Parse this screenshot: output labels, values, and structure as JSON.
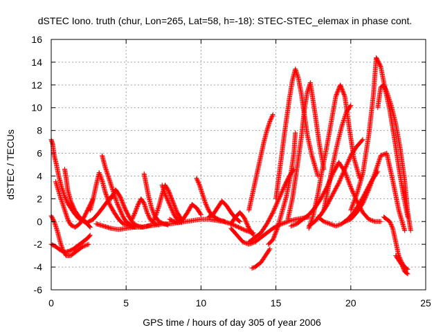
{
  "chart_data": {
    "type": "scatter",
    "title": "dSTEC Iono. truth (chur, Lon=265, Lat=58, h=-18): STEC-STEC_elemax in phase cont.",
    "xlabel": "GPS time / hours of day 305 of year 2006",
    "ylabel": "dSTEC  / TECUs",
    "xlim": [
      0,
      25
    ],
    "ylim": [
      -6,
      16
    ],
    "xticks": [
      0,
      5,
      10,
      15,
      20,
      25
    ],
    "yticks": [
      -6,
      -4,
      -2,
      0,
      2,
      4,
      6,
      8,
      10,
      12,
      14,
      16
    ],
    "grid": true,
    "marker": "+",
    "color": "#ff0000",
    "series": [
      {
        "x": [
          0.0,
          0.1,
          0.2,
          0.35,
          0.5,
          0.7,
          0.9,
          1.1,
          1.3,
          1.5,
          1.8,
          2.1,
          2.4,
          2.6
        ],
        "y": [
          7.2,
          6.8,
          5.8,
          5.0,
          4.0,
          3.0,
          2.2,
          1.6,
          1.2,
          0.8,
          0.3,
          0.1,
          -0.2,
          -0.5
        ]
      },
      {
        "x": [
          0.0,
          0.2,
          0.4,
          0.6,
          0.8,
          1.0,
          1.3,
          1.7,
          2.1,
          2.5
        ],
        "y": [
          0.5,
          0.0,
          -0.8,
          -1.8,
          -2.6,
          -3.0,
          -3.0,
          -2.6,
          -2.2,
          -2.0
        ]
      },
      {
        "x": [
          0.0,
          0.3,
          0.6,
          0.9,
          1.2,
          1.5,
          1.8,
          2.1,
          2.4,
          2.6
        ],
        "y": [
          -2.0,
          -2.2,
          -2.5,
          -2.7,
          -2.6,
          -2.4,
          -2.1,
          -1.8,
          -1.5,
          -1.2
        ]
      },
      {
        "x": [
          0.3,
          0.6,
          0.9,
          1.1,
          1.3,
          1.6,
          1.9,
          2.2,
          2.5,
          2.8
        ],
        "y": [
          3.5,
          2.2,
          1.0,
          0.2,
          -0.3,
          -0.5,
          -0.2,
          0.4,
          1.2,
          2.0
        ]
      },
      {
        "x": [
          0.9,
          1.0,
          1.1,
          1.3,
          1.6,
          2.0,
          2.4,
          2.8,
          3.2,
          3.6,
          4.0
        ],
        "y": [
          4.6,
          3.8,
          2.8,
          1.8,
          0.9,
          0.2,
          -0.1,
          0.2,
          0.8,
          1.5,
          2.2
        ]
      },
      {
        "x": [
          2.6,
          2.8,
          3.0,
          3.2,
          3.4,
          3.6,
          3.9,
          4.2,
          4.5,
          4.8,
          5.2,
          5.6
        ],
        "y": [
          1.0,
          2.0,
          3.2,
          4.3,
          3.6,
          2.6,
          1.5,
          0.8,
          0.2,
          -0.2,
          -0.4,
          -0.5
        ]
      },
      {
        "x": [
          3.4,
          3.6,
          3.8,
          4.0,
          4.2,
          4.4,
          4.6,
          4.8,
          5.0,
          5.3
        ],
        "y": [
          5.8,
          4.8,
          4.0,
          3.2,
          2.4,
          1.6,
          1.0,
          0.4,
          0.0,
          -0.3
        ]
      },
      {
        "x": [
          4.0,
          4.3,
          4.6,
          4.9,
          5.2,
          5.5,
          5.8,
          6.1,
          6.4,
          6.7
        ],
        "y": [
          2.0,
          2.8,
          2.2,
          1.2,
          0.4,
          -0.2,
          -0.4,
          -0.5,
          -0.4,
          -0.3
        ]
      },
      {
        "x": [
          3.0,
          3.5,
          4.0,
          4.5,
          5.0,
          5.5,
          6.0,
          6.5,
          7.0,
          7.5,
          8.0,
          8.5,
          9.0,
          9.5,
          10.0,
          10.5,
          11.0,
          11.5,
          12.0,
          12.5,
          13.0,
          13.5
        ],
        "y": [
          -0.2,
          -0.4,
          -0.6,
          -0.7,
          -0.6,
          -0.5,
          -0.5,
          -0.4,
          -0.3,
          -0.2,
          -0.2,
          -0.1,
          0.0,
          0.1,
          0.2,
          0.2,
          0.1,
          0.0,
          -0.2,
          -0.5,
          -0.8,
          -1.0
        ]
      },
      {
        "x": [
          5.4,
          5.6,
          5.8,
          6.0,
          6.2,
          6.4,
          6.6,
          6.9,
          7.2
        ],
        "y": [
          0.2,
          0.8,
          1.5,
          2.0,
          1.6,
          0.8,
          0.2,
          -0.2,
          -0.3
        ]
      },
      {
        "x": [
          6.2,
          6.35,
          6.5,
          6.7,
          6.9,
          7.2,
          7.5,
          7.8
        ],
        "y": [
          4.2,
          3.2,
          2.2,
          1.2,
          0.5,
          0.0,
          -0.2,
          -0.3
        ]
      },
      {
        "x": [
          6.8,
          7.0,
          7.2,
          7.4,
          7.6,
          7.8,
          8.1,
          8.4,
          8.7
        ],
        "y": [
          0.0,
          0.6,
          1.4,
          2.4,
          3.2,
          2.8,
          1.8,
          0.8,
          0.2
        ]
      },
      {
        "x": [
          7.4,
          7.6,
          7.8,
          8.0,
          8.2,
          8.4,
          8.7
        ],
        "y": [
          3.2,
          2.4,
          1.8,
          1.2,
          0.6,
          0.2,
          -0.1
        ]
      },
      {
        "x": [
          7.9,
          8.2,
          8.5,
          8.8,
          9.1,
          9.4,
          9.7,
          10.0
        ],
        "y": [
          0.2,
          0.0,
          -0.1,
          0.2,
          0.8,
          1.5,
          1.2,
          0.6
        ]
      },
      {
        "x": [
          9.7,
          9.9,
          10.1,
          10.3,
          10.5,
          10.7,
          11.0,
          11.3,
          11.6
        ],
        "y": [
          3.8,
          3.2,
          2.4,
          1.6,
          1.0,
          0.6,
          0.3,
          0.1,
          0.0
        ]
      },
      {
        "x": [
          10.5,
          10.8,
          11.1,
          11.4,
          11.7,
          12.0,
          12.3,
          12.6
        ],
        "y": [
          0.4,
          0.6,
          1.2,
          1.8,
          1.4,
          0.8,
          0.3,
          0.0
        ]
      },
      {
        "x": [
          12.0,
          12.3,
          12.6,
          12.9,
          13.2,
          13.5
        ],
        "y": [
          -0.2,
          0.4,
          0.8,
          0.3,
          -0.6,
          -1.2
        ]
      },
      {
        "x": [
          12.0,
          12.4,
          12.8,
          13.2,
          13.6,
          14.0,
          14.4,
          14.8,
          15.2,
          15.6,
          16.0,
          16.4,
          16.8,
          17.2
        ],
        "y": [
          -0.6,
          -1.2,
          -1.8,
          -2.0,
          -1.8,
          -1.4,
          -1.0,
          -0.6,
          -0.3,
          -0.1,
          0.1,
          0.2,
          0.3,
          0.4
        ]
      },
      {
        "x": [
          13.2,
          13.4,
          13.6,
          13.8,
          14.0,
          14.2,
          14.4,
          14.6,
          14.8
        ],
        "y": [
          1.0,
          2.2,
          3.4,
          4.6,
          5.8,
          7.0,
          8.0,
          8.8,
          9.4
        ]
      },
      {
        "x": [
          13.4,
          13.6,
          13.8,
          14.0,
          14.2,
          14.4,
          14.6
        ],
        "y": [
          -4.1,
          -4.0,
          -3.8,
          -3.6,
          -3.2,
          -2.8,
          -2.4
        ]
      },
      {
        "x": [
          13.2,
          13.6,
          14.0,
          14.4,
          14.8,
          15.2,
          15.6,
          15.9,
          16.2
        ],
        "y": [
          -1.8,
          -1.4,
          -1.0,
          -0.2,
          0.8,
          2.0,
          3.2,
          4.0,
          4.6
        ]
      },
      {
        "x": [
          14.5,
          14.8,
          15.1,
          15.4,
          15.7,
          16.0,
          16.2,
          16.3
        ],
        "y": [
          -2.0,
          -1.6,
          -0.6,
          0.8,
          2.2,
          4.2,
          6.0,
          7.8
        ]
      },
      {
        "x": [
          15.0,
          15.3,
          15.6,
          15.9,
          16.1,
          16.3,
          16.5,
          16.7,
          16.9,
          17.1,
          17.4,
          17.8
        ],
        "y": [
          2.0,
          5.0,
          8.0,
          10.8,
          12.4,
          13.4,
          12.6,
          11.2,
          9.4,
          7.6,
          5.8,
          4.0
        ]
      },
      {
        "x": [
          15.8,
          16.1,
          16.4,
          16.7,
          16.9,
          17.1,
          17.3,
          17.6,
          17.9,
          18.2
        ],
        "y": [
          0.2,
          2.0,
          4.6,
          7.4,
          9.8,
          11.4,
          12.2,
          9.6,
          6.8,
          4.6
        ]
      },
      {
        "x": [
          16.0,
          16.4,
          16.8,
          17.2,
          17.6,
          18.0,
          18.4,
          18.8,
          19.2,
          19.6,
          20.0,
          20.4,
          20.8,
          21.2,
          21.6,
          22.0
        ],
        "y": [
          -0.4,
          -0.2,
          0.2,
          0.6,
          1.2,
          2.0,
          3.0,
          4.2,
          5.2,
          4.4,
          3.0,
          1.8,
          0.8,
          0.2,
          0.0,
          0.0
        ]
      },
      {
        "x": [
          17.2,
          17.5,
          17.8,
          18.1,
          18.4,
          18.7,
          19.0,
          19.3,
          19.6,
          19.9,
          20.2,
          20.6
        ],
        "y": [
          -0.6,
          0.6,
          2.4,
          4.6,
          6.6,
          8.8,
          11.0,
          12.0,
          11.0,
          8.2,
          5.6,
          3.8
        ]
      },
      {
        "x": [
          18.2,
          18.5,
          18.8,
          19.1,
          19.4,
          19.7,
          20.0
        ],
        "y": [
          1.0,
          3.0,
          5.0,
          6.8,
          8.4,
          9.6,
          10.2
        ]
      },
      {
        "x": [
          17.2,
          17.6,
          18.0,
          18.4,
          18.8,
          19.2,
          19.6,
          20.0,
          20.4,
          20.8
        ],
        "y": [
          -0.4,
          0.0,
          0.6,
          1.4,
          2.4,
          3.4,
          4.6,
          5.8,
          6.6,
          7.2
        ]
      },
      {
        "x": [
          17.8,
          18.2,
          18.6,
          19.0,
          19.4,
          19.8,
          20.2,
          20.6,
          21.0,
          21.4,
          21.8
        ],
        "y": [
          0.4,
          0.0,
          -0.2,
          -0.4,
          -0.2,
          0.2,
          0.8,
          1.6,
          2.6,
          3.6,
          4.4
        ]
      },
      {
        "x": [
          19.6,
          20.0,
          20.4,
          20.8,
          21.2,
          21.6,
          22.0,
          22.4,
          22.8,
          23.2,
          23.6
        ],
        "y": [
          0.0,
          0.2,
          0.8,
          1.6,
          2.8,
          4.2,
          5.8,
          6.0,
          3.6,
          1.0,
          -0.8
        ]
      },
      {
        "x": [
          20.0,
          20.4,
          20.8,
          21.2,
          21.5,
          21.7,
          22.0,
          22.3,
          22.6,
          22.9,
          23.2,
          23.5,
          23.8
        ],
        "y": [
          1.0,
          2.4,
          4.2,
          7.6,
          11.0,
          14.4,
          13.6,
          11.6,
          9.8,
          7.4,
          4.8,
          2.4,
          0.4
        ]
      },
      {
        "x": [
          21.8,
          22.0,
          22.2,
          22.4,
          22.7,
          23.0,
          23.3,
          23.6,
          23.8,
          24.0
        ],
        "y": [
          10.0,
          11.8,
          12.0,
          11.4,
          10.2,
          8.6,
          6.4,
          3.6,
          0.8,
          -0.8
        ]
      },
      {
        "x": [
          22.2,
          22.4,
          22.6,
          22.8,
          23.0,
          23.2,
          23.4,
          23.6,
          23.8
        ],
        "y": [
          0.4,
          0.2,
          0.0,
          -0.6,
          -1.8,
          -3.0,
          -3.6,
          -4.0,
          -4.2
        ]
      },
      {
        "x": [
          23.0,
          23.2,
          23.4,
          23.6,
          23.8
        ],
        "y": [
          -3.0,
          -3.4,
          -3.8,
          -4.4,
          -4.6
        ]
      }
    ]
  }
}
